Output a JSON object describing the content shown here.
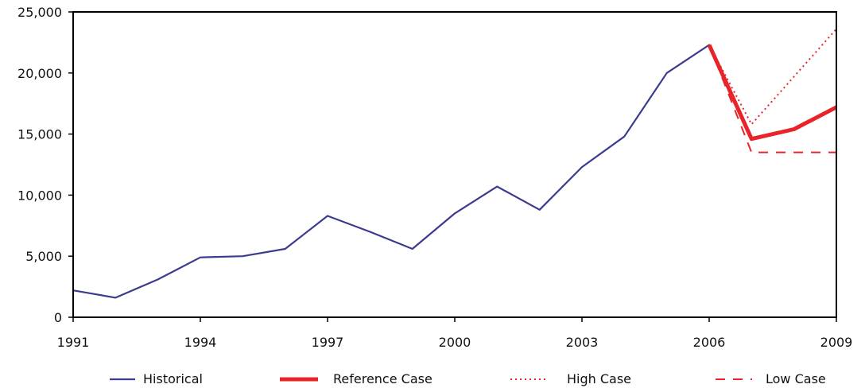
{
  "chart_data": {
    "type": "line",
    "title": "",
    "xlabel": "",
    "ylabel": "",
    "xlim": [
      1991,
      2009
    ],
    "ylim": [
      0,
      25000
    ],
    "grid": false,
    "legend_placement": "bottom",
    "x_ticks": [
      1991,
      1994,
      1997,
      2000,
      2003,
      2006,
      2009
    ],
    "x_tick_labels": [
      "1991",
      "1994",
      "1997",
      "2000",
      "2003",
      "2006",
      "2009"
    ],
    "y_ticks": [
      0,
      5000,
      10000,
      15000,
      20000,
      25000
    ],
    "y_tick_labels": [
      "0",
      "5,000",
      "10,000",
      "15,000",
      "20,000",
      "25,000"
    ],
    "series": [
      {
        "name": "Historical",
        "color": "#3b3b8f",
        "style": "solid-thin",
        "x": [
          1991,
          1992,
          1993,
          1994,
          1995,
          1996,
          1997,
          1998,
          1999,
          2000,
          2001,
          2002,
          2003,
          2004,
          2005,
          2006
        ],
        "y": [
          2200,
          1600,
          3100,
          4900,
          5000,
          5600,
          8300,
          7000,
          5600,
          8500,
          10700,
          8800,
          12300,
          14800,
          20000,
          22300
        ]
      },
      {
        "name": "Reference Case",
        "color": "#e8232a",
        "style": "solid-thick",
        "x": [
          2006,
          2007,
          2008,
          2009
        ],
        "y": [
          22300,
          14600,
          15400,
          17200
        ]
      },
      {
        "name": "High Case",
        "color": "#e8232a",
        "style": "dotted",
        "x": [
          2006,
          2007,
          2009
        ],
        "y": [
          22300,
          15800,
          23600
        ]
      },
      {
        "name": "Low Case",
        "color": "#e8232a",
        "style": "dashed",
        "x": [
          2006,
          2007,
          2009
        ],
        "y": [
          22300,
          13500,
          13500
        ]
      }
    ]
  }
}
